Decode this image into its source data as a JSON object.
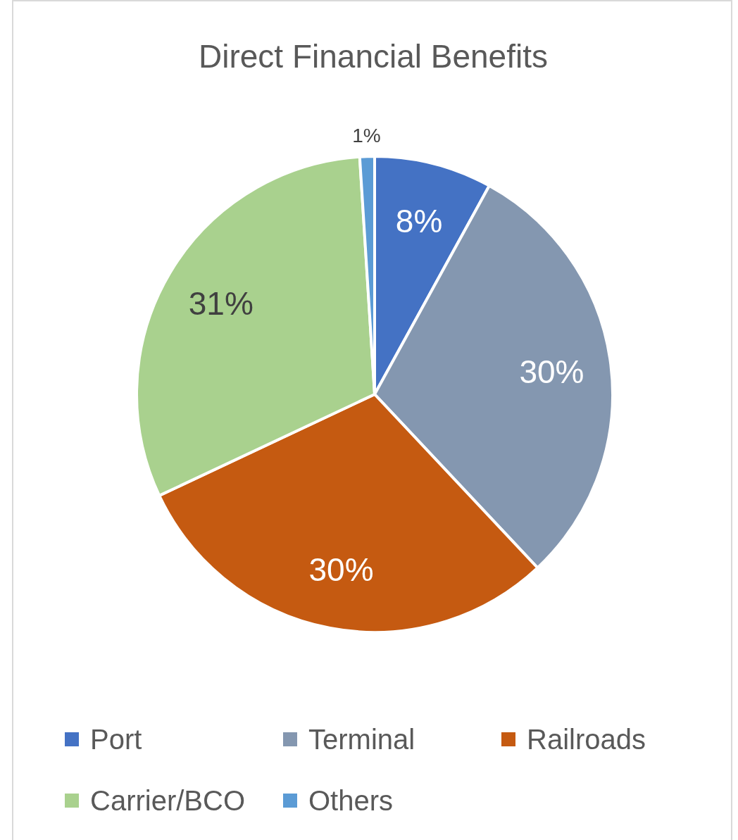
{
  "chart_data": {
    "type": "pie",
    "title": "Direct Financial Benefits",
    "categories": [
      "Port",
      "Terminal",
      "Railroads",
      "Carrier/BCO",
      "Others"
    ],
    "values": [
      8,
      30,
      30,
      31,
      1
    ],
    "colors": [
      "#4472c4",
      "#8497b0",
      "#c55a11",
      "#a9d18e",
      "#5b9bd5"
    ],
    "value_labels": [
      "8%",
      "30%",
      "30%",
      "31%",
      "1%"
    ],
    "legend": "bottom"
  }
}
